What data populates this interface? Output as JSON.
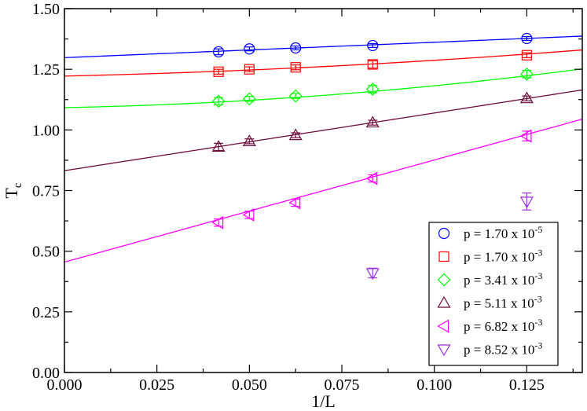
{
  "chart_data": {
    "type": "scatter",
    "xlabel": "1/L",
    "ylabel": "T",
    "ylabel_subscript": "c",
    "xlim": [
      0.0,
      0.14
    ],
    "ylim": [
      0.0,
      1.5
    ],
    "xticks": [
      0.0,
      0.025,
      0.05,
      0.075,
      0.1,
      0.125
    ],
    "xtick_labels": [
      "0.000",
      "0.025",
      "0.050",
      "0.075",
      "0.100",
      "0.125"
    ],
    "yticks": [
      0.0,
      0.25,
      0.5,
      0.75,
      1.0,
      1.25,
      1.5
    ],
    "ytick_labels": [
      "0.00",
      "0.25",
      "0.50",
      "0.75",
      "1.00",
      "1.25",
      "1.50"
    ],
    "grid": false,
    "legend_position": "bottom-right",
    "series": [
      {
        "name": "p = 1.70 x 10-5",
        "label_base": "p = 1.70 x 10",
        "label_exp": "-5",
        "marker": "circle",
        "color": "#0000ff",
        "x": [
          0.041667,
          0.05,
          0.0625,
          0.083333,
          0.125
        ],
        "y": [
          1.322,
          1.334,
          1.338,
          1.348,
          1.377
        ],
        "yerr": [
          0.012,
          0.008,
          0.008,
          0.008,
          0.008
        ],
        "fit": {
          "kind": "line",
          "intercept": 1.298,
          "slope": 0.634
        }
      },
      {
        "name": "p = 1.70 x 10-3",
        "label_base": "p = 1.70 x 10",
        "label_exp": "-3",
        "marker": "square",
        "color": "#ff0000",
        "x": [
          0.041667,
          0.05,
          0.0625,
          0.083333,
          0.125
        ],
        "y": [
          1.24,
          1.25,
          1.258,
          1.27,
          1.308
        ],
        "yerr": [
          0.01,
          0.01,
          0.01,
          0.015,
          0.01
        ],
        "fit": {
          "kind": "quad",
          "intercept": 1.222,
          "slope": 0.35,
          "curv": 3.0
        }
      },
      {
        "name": "p = 3.41 x 10-3",
        "label_base": "p = 3.41 x 10",
        "label_exp": "-3",
        "marker": "diamond",
        "color": "#00ff00",
        "x": [
          0.041667,
          0.05,
          0.0625,
          0.083333,
          0.125
        ],
        "y": [
          1.118,
          1.128,
          1.14,
          1.168,
          1.23
        ],
        "yerr": [
          0.015,
          0.01,
          0.01,
          0.015,
          0.015
        ],
        "fit": {
          "kind": "quad",
          "intercept": 1.092,
          "slope": 0.3,
          "curv": 6.0
        }
      },
      {
        "name": "p = 5.11 x 10-3",
        "label_base": "p = 5.11 x 10",
        "label_exp": "-3",
        "marker": "triangle-up",
        "color": "#6b0a3a",
        "x": [
          0.041667,
          0.05,
          0.0625,
          0.083333,
          0.125
        ],
        "y": [
          0.93,
          0.953,
          0.978,
          1.03,
          1.13
        ],
        "yerr": [
          0.015,
          0.01,
          0.01,
          0.01,
          0.01
        ],
        "fit": {
          "kind": "line",
          "intercept": 0.832,
          "slope": 2.378
        }
      },
      {
        "name": "p = 6.82 x 10-3",
        "label_base": "p = 6.82 x 10",
        "label_exp": "-3",
        "marker": "triangle-left",
        "color": "#ff00ff",
        "x": [
          0.041667,
          0.05,
          0.0625,
          0.083333,
          0.125
        ],
        "y": [
          0.618,
          0.65,
          0.7,
          0.8,
          0.975
        ],
        "yerr": [
          0.015,
          0.015,
          0.015,
          0.015,
          0.02
        ],
        "fit": {
          "kind": "line",
          "intercept": 0.455,
          "slope": 4.21
        }
      },
      {
        "name": "p = 8.52 x 10-3",
        "label_base": "p = 8.52 x 10",
        "label_exp": "-3",
        "marker": "triangle-down",
        "color": "#9b30d9",
        "x": [
          0.083333,
          0.125
        ],
        "y": [
          0.41,
          0.705
        ],
        "yerr": [
          0.02,
          0.035
        ],
        "fit": null
      }
    ]
  }
}
